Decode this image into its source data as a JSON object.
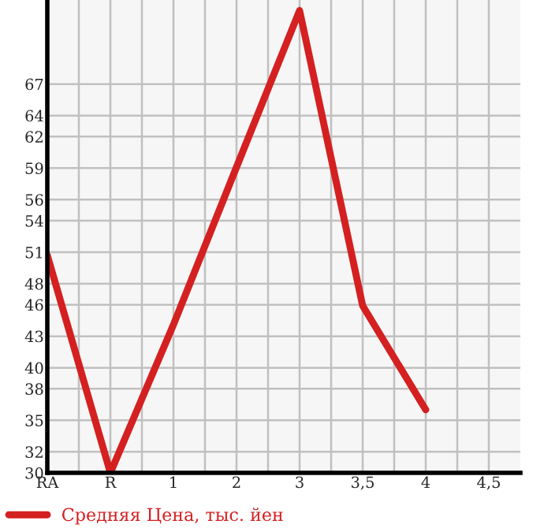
{
  "chart_data": {
    "type": "line",
    "categories": [
      "RA",
      "R",
      "1",
      "2",
      "3",
      "3,5",
      "4",
      "4,5"
    ],
    "series": [
      {
        "name": "Средняя Цена, тыс. йен",
        "color": "#d42020",
        "values": [
          50.7,
          30,
          44.1,
          59.1,
          74,
          45.9,
          36,
          null
        ]
      }
    ],
    "ylim": [
      30,
      75
    ],
    "yticks": [
      30,
      32,
      35,
      38,
      40,
      43,
      46,
      48,
      51,
      54,
      56,
      59,
      62,
      64,
      67
    ],
    "grid": true,
    "legend": "bottom",
    "marker": "none",
    "line_style": "solid"
  }
}
